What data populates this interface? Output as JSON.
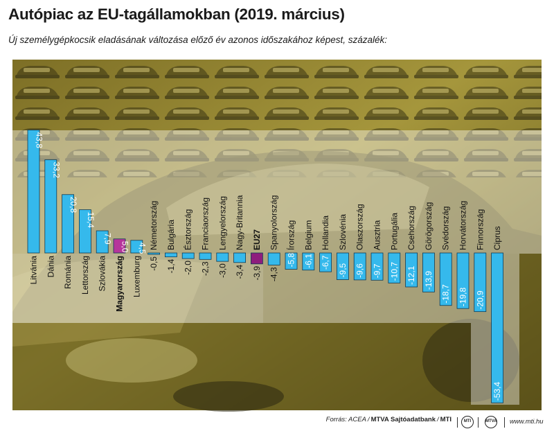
{
  "header": {
    "title": "Autópiac az EU-tagállamokban (2019. március)",
    "subtitle": "Új személygépkocsik eladásának változása előző év azonos időszakához képest, százalék:"
  },
  "chart_data": {
    "type": "bar",
    "title": "Autópiac az EU-tagállamokban (2019. március)",
    "subtitle": "Új személygépkocsik eladásának változása előző év azonos időszakához képest, százalék:",
    "xlabel": "",
    "ylabel": "",
    "ylim": [
      -53.4,
      43.8
    ],
    "legend": "none",
    "grid": false,
    "categories": [
      "Litvánia",
      "Dánia",
      "Románia",
      "Lettország",
      "Szlovákia",
      "Magyarország",
      "Luxemburg",
      "Németország",
      "Bulgária",
      "Észtország",
      "Franciaország",
      "Lengyelország",
      "Nagy-Britannia",
      "EU27",
      "Spanyolország",
      "Írország",
      "Belgium",
      "Hollandia",
      "Szlovénia",
      "Olaszország",
      "Ausztria",
      "Portugália",
      "Csehország",
      "Görögország",
      "Svédország",
      "Horvátország",
      "Finnország",
      "Ciprus"
    ],
    "value_labels": [
      "43,8",
      "33,2",
      "20,8",
      "15,4",
      "7,9",
      "5,0",
      "4,5",
      "-0,5",
      "-1,4",
      "-2,0",
      "-2,3",
      "-3,0",
      "-3,4",
      "-3,9",
      "-4,3",
      "-5,8",
      "-6,1",
      "-6,7",
      "-9,5",
      "-9,6",
      "-9,7",
      "-10,7",
      "-12,1",
      "-13,9",
      "-18,7",
      "-19,8",
      "-20,9",
      "-53,4"
    ],
    "series": [
      {
        "values": [
          43.8,
          33.2,
          20.8,
          15.4,
          7.9,
          5.0,
          4.5,
          -0.5,
          -1.4,
          -2.0,
          -2.3,
          -3.0,
          -3.4,
          -3.9,
          -4.3,
          -5.8,
          -6.1,
          -6.7,
          -9.5,
          -9.6,
          -9.7,
          -10.7,
          -12.1,
          -13.9,
          -18.7,
          -19.8,
          -20.9,
          -53.4
        ]
      }
    ],
    "highlight": {
      "Magyarország": "hungary",
      "EU27": "eu"
    },
    "colors": {
      "bar": "#35b9ec",
      "bar_border": "#0d3a55",
      "hungary": "#b6359b",
      "eu": "#8e1c7d",
      "label_text": "#ffffff",
      "category_text": "#111111",
      "photo_dark": "#2d2a12",
      "photo_mid": "#8a7d2c",
      "photo_light": "#c8b751"
    }
  },
  "footer": {
    "source_prefix": "Forrás: ACEA",
    "agency": "MTVA Sajtóadatbank",
    "agency2": "MTI",
    "website": "www.mti.hu",
    "logo1": "MTI",
    "logo2": "MTVA"
  }
}
